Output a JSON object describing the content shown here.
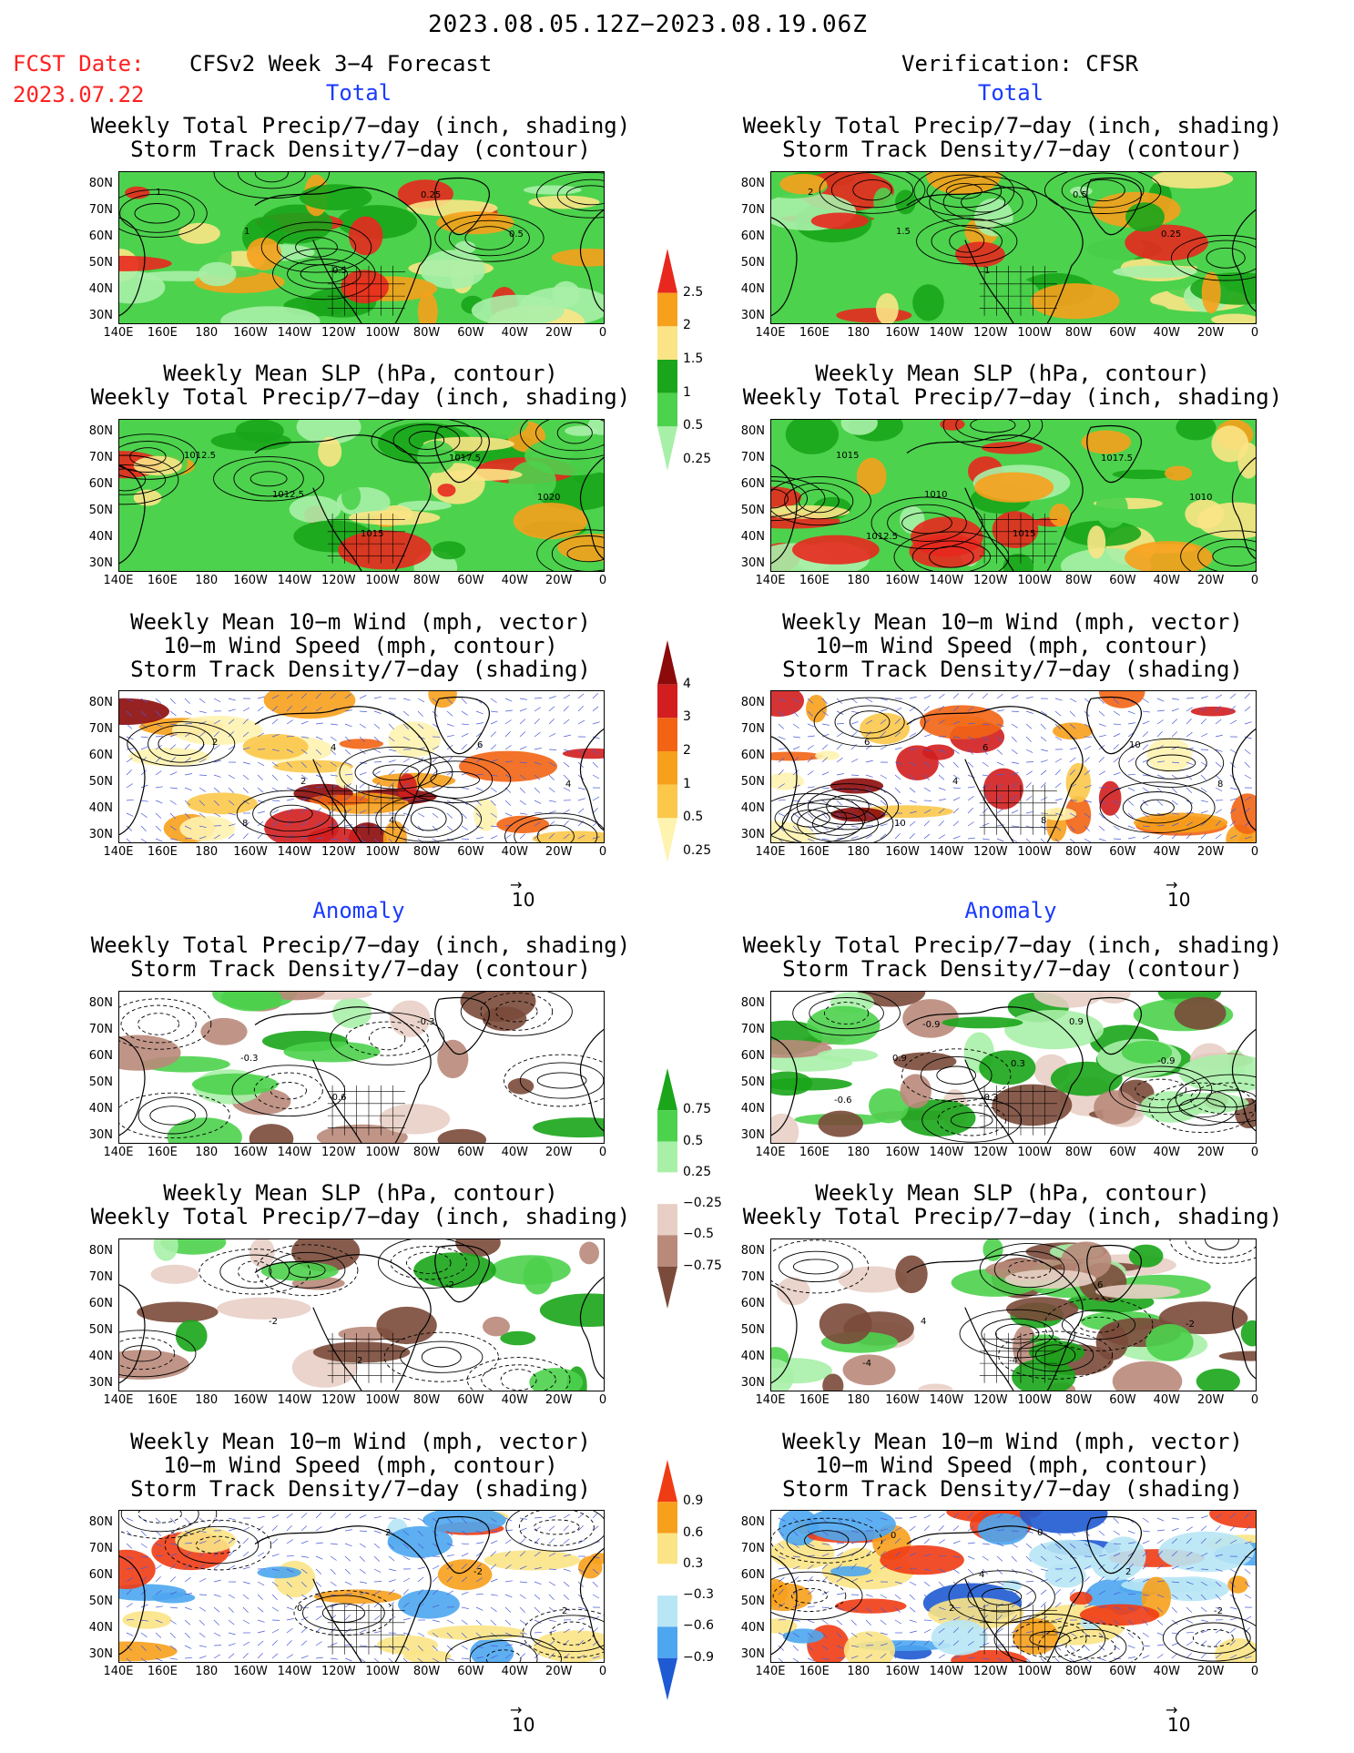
{
  "header": {
    "date_range": "2023.08.05.12Z−2023.08.19.06Z",
    "fcst_label": "FCST Date:",
    "fcst_date": "2023.07.22",
    "model_title": "CFSv2 Week 3−4 Forecast",
    "verification_title": "Verification: CFSR"
  },
  "sections": {
    "total": "Total",
    "anomaly": "Anomaly"
  },
  "panel_titles": {
    "precip_storm": [
      "Weekly Total Precip/7−day (inch, shading)",
      "Storm Track Density/7−day (contour)"
    ],
    "slp_precip": [
      "Weekly Mean SLP (hPa, contour)",
      "Weekly Total Precip/7−day (inch, shading)"
    ],
    "wind_storm": [
      "Weekly Mean 10−m Wind (mph, vector)",
      "10−m Wind Speed (mph, contour)",
      "Storm Track Density/7−day (shading)"
    ]
  },
  "axes": {
    "lat_labels": [
      "80N",
      "70N",
      "60N",
      "50N",
      "40N",
      "30N"
    ],
    "lon_labels": [
      "140E",
      "160E",
      "180",
      "160W",
      "140W",
      "120W",
      "100W",
      "80W",
      "60W",
      "40W",
      "20W",
      "0"
    ]
  },
  "vector_reference": "10",
  "colorbars": {
    "total_precip": {
      "labels": [
        "2.5",
        "2",
        "1.5",
        "1",
        "0.5",
        "0.25"
      ],
      "colors": [
        "#e8281e",
        "#f7a01c",
        "#fbe486",
        "#1aa51a",
        "#4dd24d",
        "#a8f0a8"
      ]
    },
    "total_storm": {
      "labels": [
        "4",
        "3",
        "2",
        "1",
        "0.5",
        "0.25"
      ],
      "colors": [
        "#8c0a0a",
        "#d21e1e",
        "#f26414",
        "#f7a01c",
        "#fbc84a",
        "#fff3b0"
      ]
    },
    "anom_precip": {
      "labels": [
        "0.75",
        "0.5",
        "0.25",
        "−0.25",
        "−0.5",
        "−0.75"
      ],
      "colors": [
        "#1aa51a",
        "#4dd24d",
        "#a8f0a8",
        "#ffffff",
        "#e8cfc5",
        "#b98a7a",
        "#7a4a3a"
      ]
    },
    "anom_storm": {
      "labels": [
        "0.9",
        "0.6",
        "0.3",
        "−0.3",
        "−0.6",
        "−0.9"
      ],
      "colors": [
        "#f03c14",
        "#f7a01c",
        "#fbe486",
        "#ffffff",
        "#b8e6f5",
        "#4da6f0",
        "#1e5ad2"
      ]
    }
  },
  "contour_labels": {
    "fcst_total_storm": [
      "1",
      "1",
      "0.5",
      "0.25",
      "0.5"
    ],
    "verif_total_storm": [
      "2",
      "1.5",
      "1",
      "0.5",
      "0.25"
    ],
    "fcst_total_slp": [
      "1012.5",
      "1012.5",
      "1015",
      "1017.5",
      "1020"
    ],
    "verif_total_slp": [
      "1015",
      "1010",
      "1015",
      "1017.5",
      "1010",
      "1012.5"
    ],
    "fcst_total_wind": [
      "2",
      "2",
      "4",
      "6",
      "4",
      "8",
      "4"
    ],
    "verif_total_wind": [
      "6",
      "4",
      "8",
      "10",
      "8",
      "10",
      "6"
    ],
    "fcst_anom_storm": [
      "-0.3",
      "-0.6",
      "-0.3"
    ],
    "verif_anom_storm": [
      "0.9",
      "-0.3",
      "0.9",
      "-0.9",
      "-0.6",
      "-0.9",
      "0.3"
    ],
    "fcst_anom_slp": [
      "-2",
      "2",
      "-2"
    ],
    "verif_anom_slp": [
      "4",
      "-4",
      "6",
      "-2",
      "-4"
    ],
    "fcst_anom_wind": [
      "0",
      "2",
      "-2",
      "2"
    ],
    "verif_anom_wind": [
      "2",
      "0",
      "2",
      "-2",
      "0",
      "4"
    ]
  }
}
